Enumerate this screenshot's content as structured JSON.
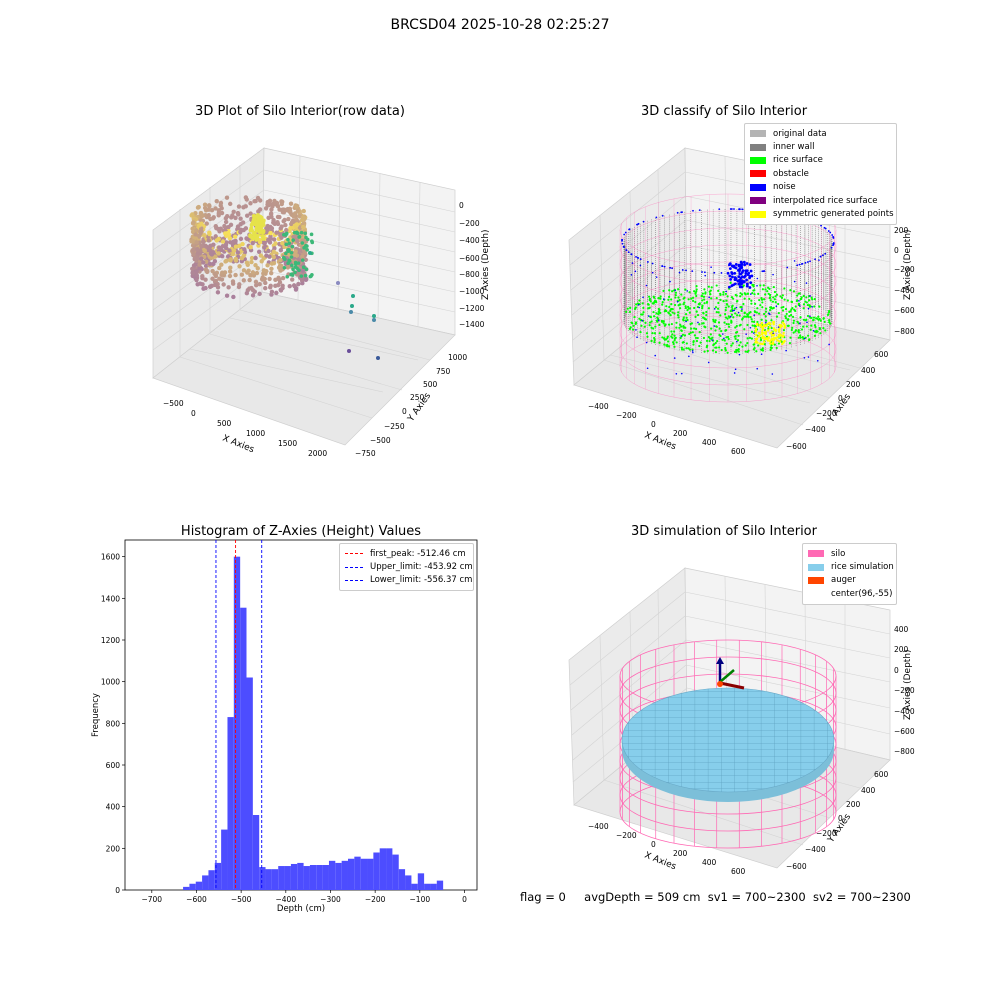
{
  "figure": {
    "suptitle": "BRCSD04 2025-10-28 02:25:27",
    "footer": {
      "flag": "flag = 0",
      "avg_depth": "avgDepth = 509 cm",
      "sv1": "sv1 = 700~2300",
      "sv2": "sv2 = 700~2300"
    }
  },
  "colors": {
    "rice_surface": "#00ff00",
    "noise": "#0000ff",
    "inner_wall": "#808080",
    "original": "#b4b4b4",
    "obstacle": "#ff0000",
    "interpolated": "#800080",
    "symmetric": "#ffff00",
    "silo": "#ff69b4",
    "rice_sim": "#87ceeb",
    "auger": "#ff4500",
    "hist_bar": "#4d4dff"
  },
  "chart_data": [
    {
      "type": "scatter",
      "projection": "3d",
      "title": "3D Plot of Silo Interior(row data)",
      "xlabel": "X Axies",
      "ylabel": "Y Axies",
      "zlabel": "Z Axies (Depth)",
      "x_ticks": [
        "−500",
        "0",
        "500",
        "1000",
        "1500",
        "2000"
      ],
      "y_ticks": [
        "−750",
        "−500",
        "−250",
        "0",
        "250",
        "500",
        "750",
        "1000"
      ],
      "z_ticks": [
        "0",
        "−200",
        "−400",
        "−600",
        "−800",
        "−1000",
        "−1200",
        "−1400"
      ],
      "colormap": "viridis",
      "grid": true
    },
    {
      "type": "scatter",
      "projection": "3d",
      "title": "3D classify of Silo Interior",
      "xlabel": "X Axies",
      "ylabel": "Y Axies",
      "zlabel": "Z Axies (Depth)",
      "x_ticks": [
        "−400",
        "−200",
        "0",
        "200",
        "400",
        "600"
      ],
      "y_ticks": [
        "−600",
        "−400",
        "−200",
        "0",
        "200",
        "400",
        "600"
      ],
      "z_ticks": [
        "200",
        "0",
        "−200",
        "−400",
        "−600",
        "−800"
      ],
      "legend": [
        "original data",
        "inner wall",
        "rice surface",
        "obstacle",
        "noise",
        "interpolated rice surface",
        "symmetric generated points"
      ],
      "legend_position": "upper-right",
      "grid": true
    },
    {
      "type": "bar",
      "title": "Histogram of Z-Axies (Height) Values",
      "xlabel": "Depth (cm)",
      "ylabel": "Frequency",
      "x_ticks": [
        "−700",
        "−600",
        "−500",
        "−400",
        "−300",
        "−200",
        "−100",
        "0"
      ],
      "y_ticks": [
        "0",
        "200",
        "400",
        "600",
        "800",
        "1000",
        "1200",
        "1400",
        "1600"
      ],
      "xlim": [
        -760,
        28
      ],
      "ylim": [
        0,
        1680
      ],
      "bin_start": -630,
      "bin_width": 14.2,
      "values": [
        15,
        30,
        40,
        70,
        95,
        130,
        290,
        830,
        1600,
        1355,
        1020,
        360,
        110,
        100,
        100,
        115,
        115,
        125,
        130,
        115,
        120,
        120,
        120,
        140,
        130,
        140,
        150,
        160,
        150,
        150,
        180,
        200,
        200,
        170,
        100,
        70,
        30,
        80,
        30,
        30,
        45
      ],
      "vlines": [
        {
          "x": -512.46,
          "label": "first_peak: -512.46 cm",
          "color": "#ff0000"
        },
        {
          "x": -453.92,
          "label": "Upper_limit: -453.92 cm",
          "color": "#0000ff"
        },
        {
          "x": -556.37,
          "label": "Lower_limit: -556.37 cm",
          "color": "#0000ff"
        }
      ],
      "legend_position": "upper-right",
      "grid": false
    },
    {
      "type": "scatter",
      "projection": "3d",
      "title": "3D simulation of Silo Interior",
      "xlabel": "X Axies",
      "ylabel": "Y Axies",
      "zlabel": "Z Axies (Depth)",
      "x_ticks": [
        "−400",
        "−200",
        "0",
        "200",
        "400",
        "600"
      ],
      "y_ticks": [
        "−600",
        "−400",
        "−200",
        "0",
        "200",
        "400",
        "600"
      ],
      "z_ticks": [
        "400",
        "200",
        "0",
        "−200",
        "−400",
        "−600",
        "−800"
      ],
      "legend": [
        "silo",
        "rice simulation",
        "auger",
        "center(96,-55)"
      ],
      "legend_position": "upper-right",
      "grid": true
    }
  ]
}
